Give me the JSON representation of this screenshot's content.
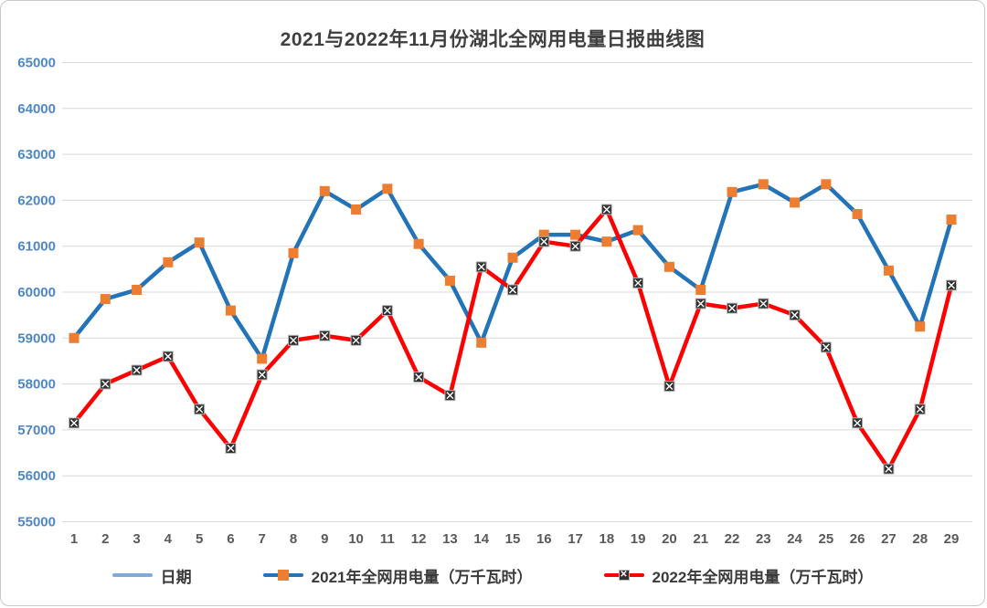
{
  "title": "2021与2022年11月份湖北全网用电量日报曲线图",
  "colors": {
    "title_text": "#404040",
    "gridline": "#d9d9d9",
    "y_label": "#4e87c6",
    "x_label": "#595959",
    "date_legend_line": "#7fabd9",
    "series_2021_line": "#2273b8",
    "series_2021_marker": "#ed7d31",
    "series_2022_line": "#fe0000",
    "series_2022_marker": "#303030",
    "series_2022_marker_x": "#ffffff"
  },
  "legend": {
    "marker_x_glyph": "✕"
  },
  "chart_data": {
    "type": "line",
    "title": "2021与2022年11月份湖北全网用电量日报曲线图",
    "xlabel": "",
    "ylabel": "",
    "x": [
      1,
      2,
      3,
      4,
      5,
      6,
      7,
      8,
      9,
      10,
      11,
      12,
      13,
      14,
      15,
      16,
      17,
      18,
      19,
      20,
      21,
      22,
      23,
      24,
      25,
      26,
      27,
      28,
      29
    ],
    "y_ticks": [
      55000,
      56000,
      57000,
      58000,
      59000,
      60000,
      61000,
      62000,
      63000,
      64000,
      65000
    ],
    "ylim": [
      55000,
      65000
    ],
    "grid": "horizontal",
    "legend_position": "bottom",
    "series": [
      {
        "name": "日期",
        "values": []
      },
      {
        "name": "2021年全网用电量（万千瓦时）",
        "values": [
          59000,
          59850,
          60050,
          60650,
          61080,
          59600,
          58550,
          60850,
          62200,
          61800,
          62250,
          61050,
          60250,
          58900,
          60750,
          61250,
          61250,
          61100,
          61350,
          60550,
          60050,
          62180,
          62350,
          61950,
          62350,
          61700,
          60470,
          59250,
          61580
        ]
      },
      {
        "name": "2022年全网用电量（万千瓦时）",
        "values": [
          57150,
          58000,
          58300,
          58600,
          57450,
          56600,
          58200,
          58950,
          59050,
          58950,
          59600,
          58150,
          57750,
          60550,
          60050,
          61100,
          61000,
          61800,
          60200,
          57950,
          59750,
          59650,
          59750,
          59500,
          58800,
          57150,
          56150,
          57450,
          60150
        ]
      }
    ]
  }
}
